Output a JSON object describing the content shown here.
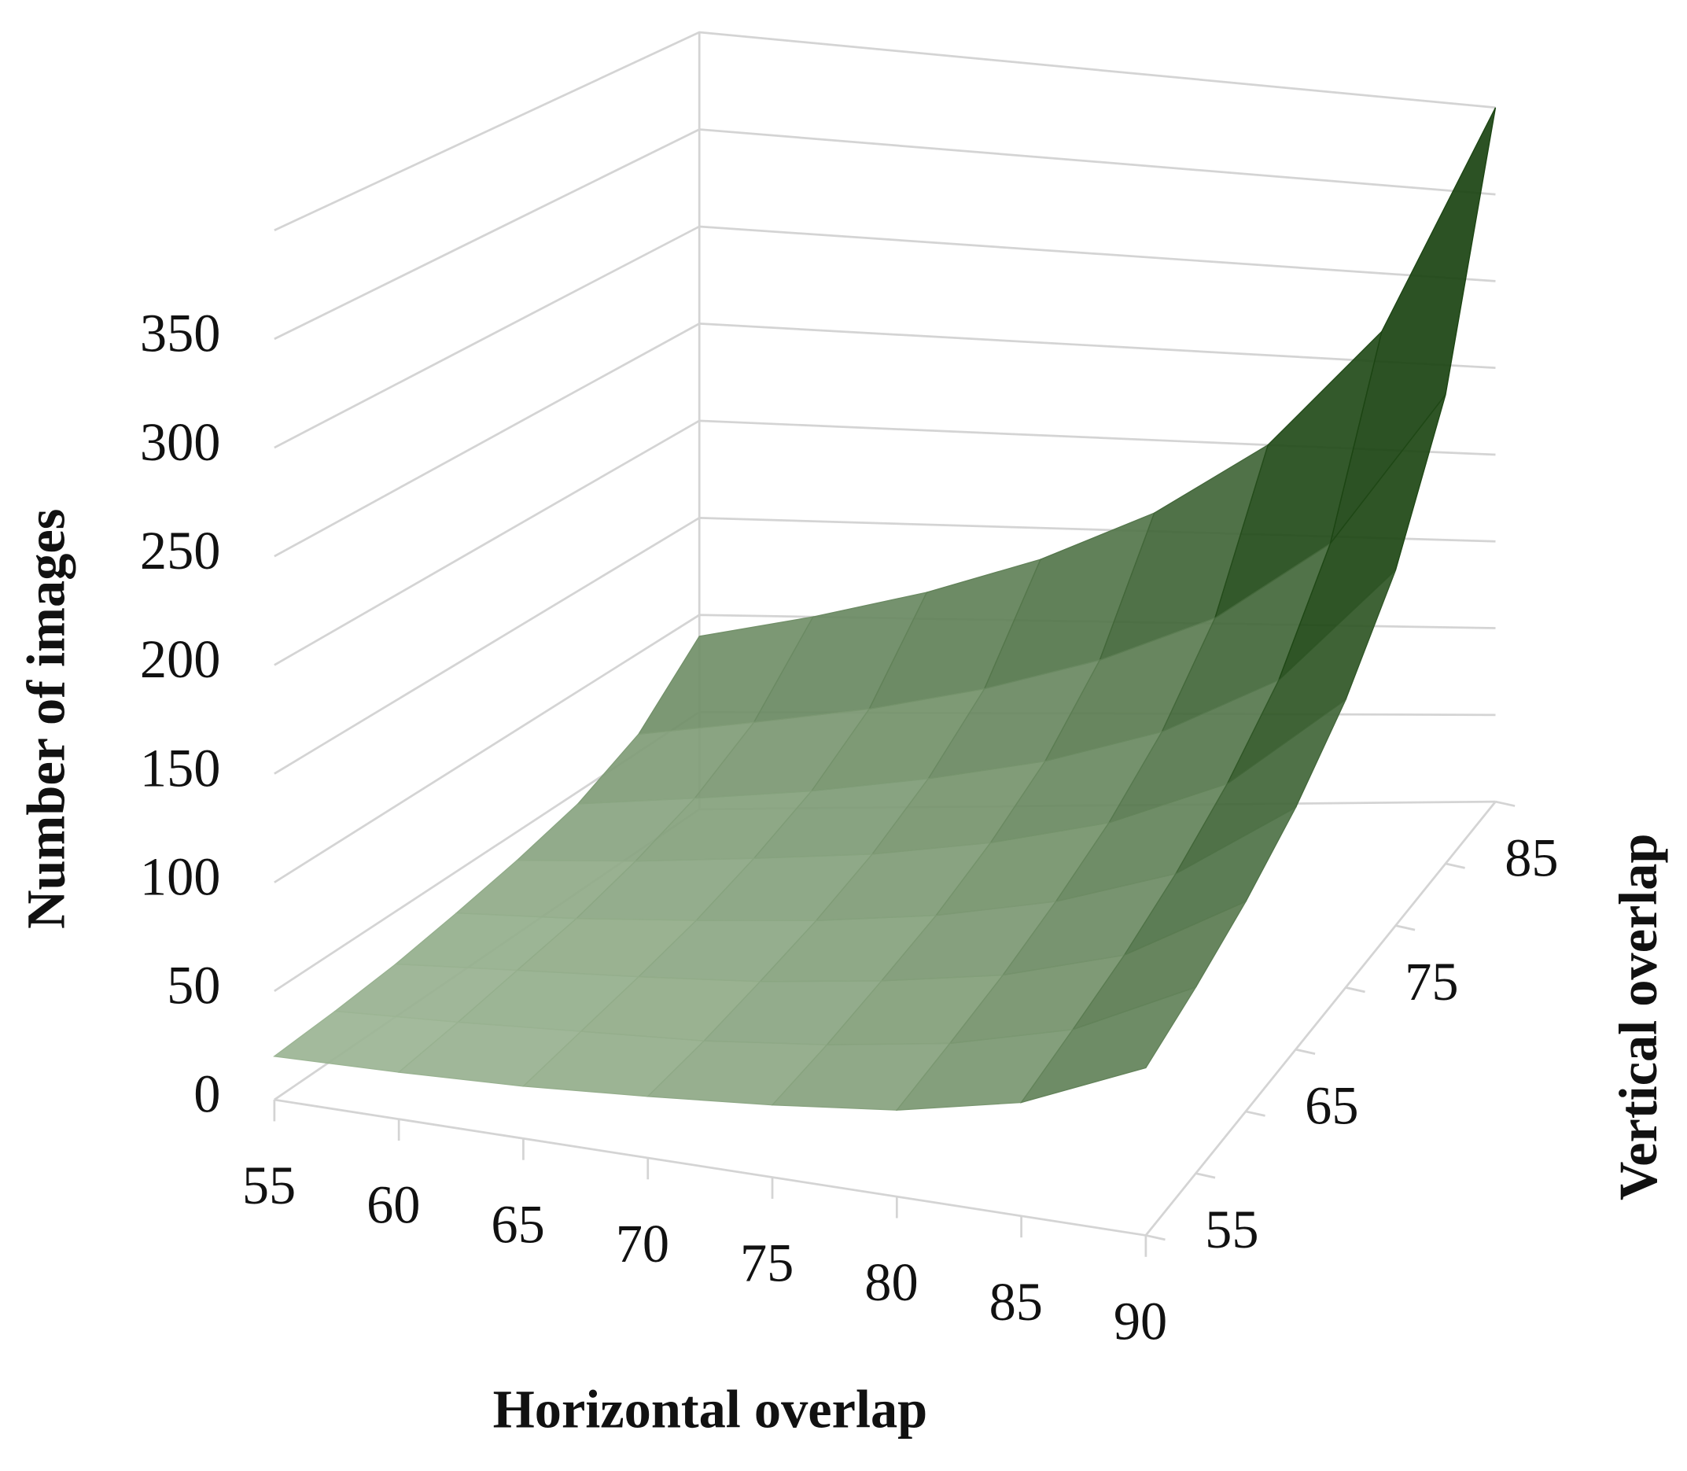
{
  "chart_data": {
    "type": "surface3d",
    "x_label": "Horizontal overlap",
    "depth_label": "Vertical overlap",
    "y_label": "Number of images",
    "x": [
      55,
      60,
      65,
      70,
      75,
      80,
      85,
      90
    ],
    "depth": [
      55,
      60,
      65,
      70,
      75,
      80,
      85,
      90
    ],
    "depth_ticks": [
      55,
      65,
      75,
      85
    ],
    "values": [
      [
        20,
        22,
        25,
        30,
        36,
        44,
        59,
        89
      ],
      [
        22,
        25,
        29,
        33,
        40,
        50,
        67,
        100
      ],
      [
        25,
        29,
        33,
        38,
        46,
        57,
        76,
        114
      ],
      [
        30,
        33,
        38,
        44,
        53,
        67,
        89,
        133
      ],
      [
        36,
        40,
        46,
        53,
        64,
        80,
        107,
        160
      ],
      [
        44,
        50,
        57,
        67,
        80,
        100,
        133,
        200
      ],
      [
        59,
        67,
        76,
        89,
        107,
        133,
        178,
        267
      ],
      [
        89,
        100,
        114,
        133,
        160,
        200,
        267,
        400
      ]
    ],
    "ylim": [
      0,
      400
    ],
    "yticks": [
      0,
      50,
      100,
      150,
      200,
      250,
      300,
      350
    ],
    "colors": [
      "#c9dcc1",
      "#1c4513"
    ],
    "grid": true
  }
}
